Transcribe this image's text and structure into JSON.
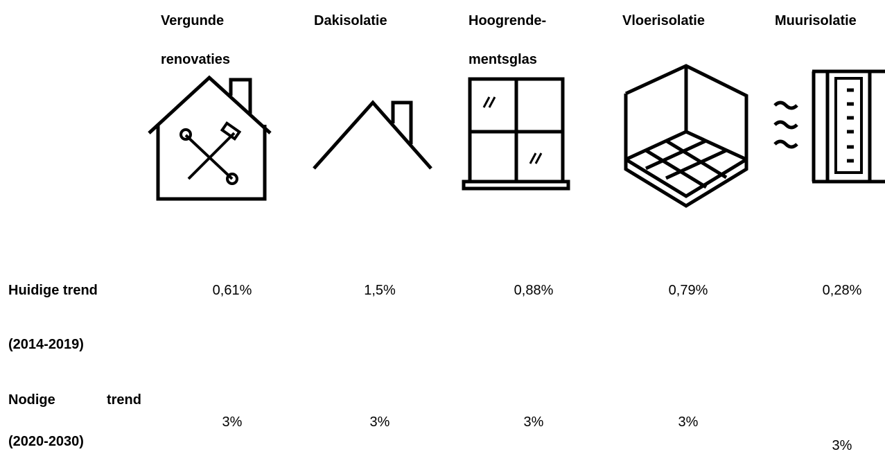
{
  "headers": [
    [
      "Vergunde",
      "renovaties"
    ],
    [
      "Dakisolatie"
    ],
    [
      "Hoogrende-",
      "mentsglas"
    ],
    [
      "Vloerisolatie"
    ],
    [
      "Muurisolatie"
    ]
  ],
  "rows": [
    {
      "label": [
        "Huidige trend",
        "(2014-2019)"
      ],
      "values": [
        "0,61%",
        "1,5%",
        "0,88%",
        "0,79%",
        "0,28%"
      ]
    },
    {
      "label": [
        "Nodige trend",
        "(2020-2030)"
      ],
      "values": [
        "3%",
        "3%",
        "3%",
        "3%",
        "3%"
      ]
    }
  ]
}
